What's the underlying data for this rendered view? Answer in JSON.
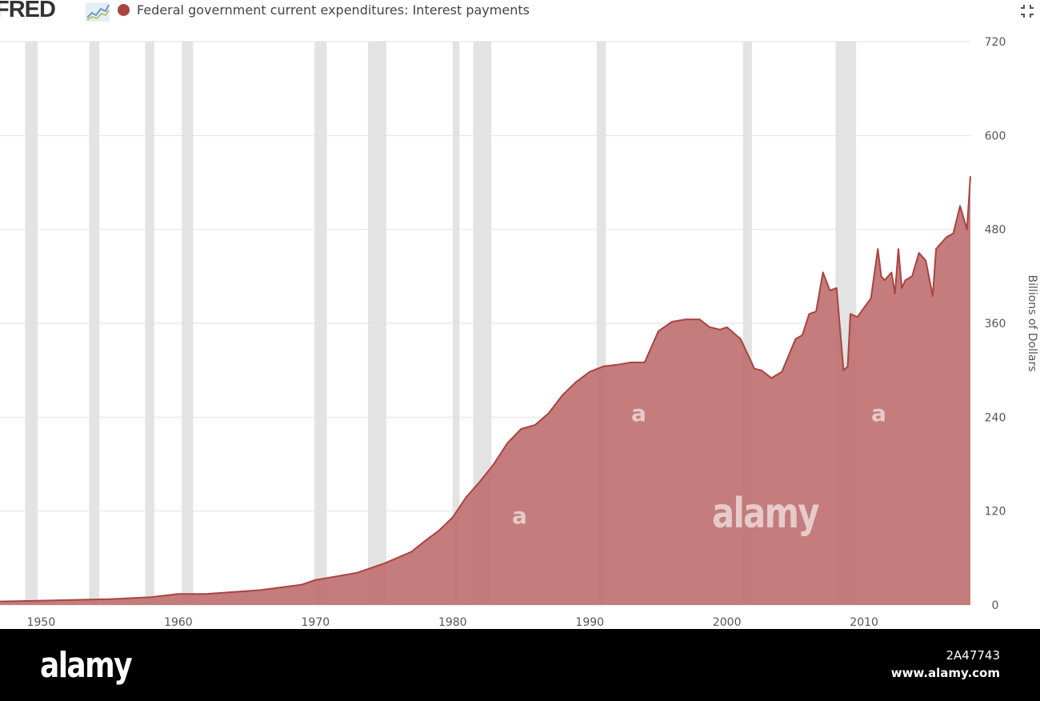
{
  "header": {
    "logo": "FRED",
    "logo_icon": "line-chart-icon",
    "collapse_icon": "collapse-icon"
  },
  "chart_data": {
    "type": "area",
    "title": "Federal government current expenditures: Interest payments",
    "xlabel": "",
    "ylabel": "Billions of Dollars",
    "xlim": [
      1947.0,
      2017.75
    ],
    "ylim": [
      0,
      720
    ],
    "x_ticks": [
      1950,
      1960,
      1970,
      1980,
      1990,
      2000,
      2010
    ],
    "y_ticks": [
      0,
      120,
      240,
      360,
      480,
      600,
      720
    ],
    "grid": "horizontal",
    "color": "#a94442",
    "fill_color": "#bf7171",
    "recession_color": "#e3e3e3",
    "recessions": [
      [
        1948.83,
        1949.75
      ],
      [
        1953.5,
        1954.25
      ],
      [
        1957.58,
        1958.25
      ],
      [
        1960.25,
        1961.08
      ],
      [
        1969.92,
        1970.83
      ],
      [
        1973.83,
        1975.17
      ],
      [
        1980.0,
        1980.5
      ],
      [
        1981.5,
        1982.83
      ],
      [
        1990.5,
        1991.17
      ],
      [
        2001.17,
        2001.83
      ],
      [
        2007.92,
        2009.42
      ]
    ],
    "x": [
      1947.0,
      1950.0,
      1955.0,
      1958.0,
      1960.0,
      1962.0,
      1966.0,
      1969.0,
      1970.0,
      1971.0,
      1973.0,
      1975.0,
      1977.0,
      1978.0,
      1979.0,
      1980.0,
      1981.0,
      1982.0,
      1983.0,
      1984.0,
      1985.0,
      1986.0,
      1987.0,
      1988.0,
      1989.0,
      1990.0,
      1991.0,
      1992.0,
      1993.0,
      1994.0,
      1995.0,
      1996.0,
      1997.0,
      1998.0,
      1998.75,
      1999.5,
      2000.0,
      2001.0,
      2002.0,
      2002.5,
      2003.25,
      2004.0,
      2005.0,
      2005.5,
      2006.0,
      2006.5,
      2007.0,
      2007.5,
      2008.0,
      2008.5,
      2008.8,
      2009.0,
      2009.5,
      2010.0,
      2010.5,
      2011.0,
      2011.25,
      2011.5,
      2012.0,
      2012.25,
      2012.5,
      2012.75,
      2013.0,
      2013.5,
      2014.0,
      2014.5,
      2015.0,
      2015.25,
      2015.5,
      2016.0,
      2016.5,
      2017.0,
      2017.5,
      2017.75
    ],
    "values": [
      4.5,
      5.5,
      7.5,
      10,
      14,
      14,
      19,
      26,
      32,
      35,
      41,
      53,
      68,
      82,
      95,
      112,
      138,
      158,
      180,
      207,
      225,
      230,
      245,
      268,
      285,
      298,
      305,
      307,
      310,
      310,
      350,
      362,
      365,
      365,
      355,
      352,
      355,
      340,
      302,
      300,
      290,
      298,
      340,
      345,
      372,
      375,
      425,
      402,
      405,
      300,
      305,
      372,
      368,
      380,
      392,
      455,
      420,
      415,
      425,
      398,
      455,
      405,
      415,
      420,
      450,
      440,
      395,
      455,
      460,
      470,
      475,
      510,
      480,
      548
    ]
  },
  "footer": {
    "logo": "alamy",
    "image_id": "2A47743",
    "url": "www.alamy.com"
  },
  "watermarks": {
    "big": "alamy",
    "small": "a"
  }
}
